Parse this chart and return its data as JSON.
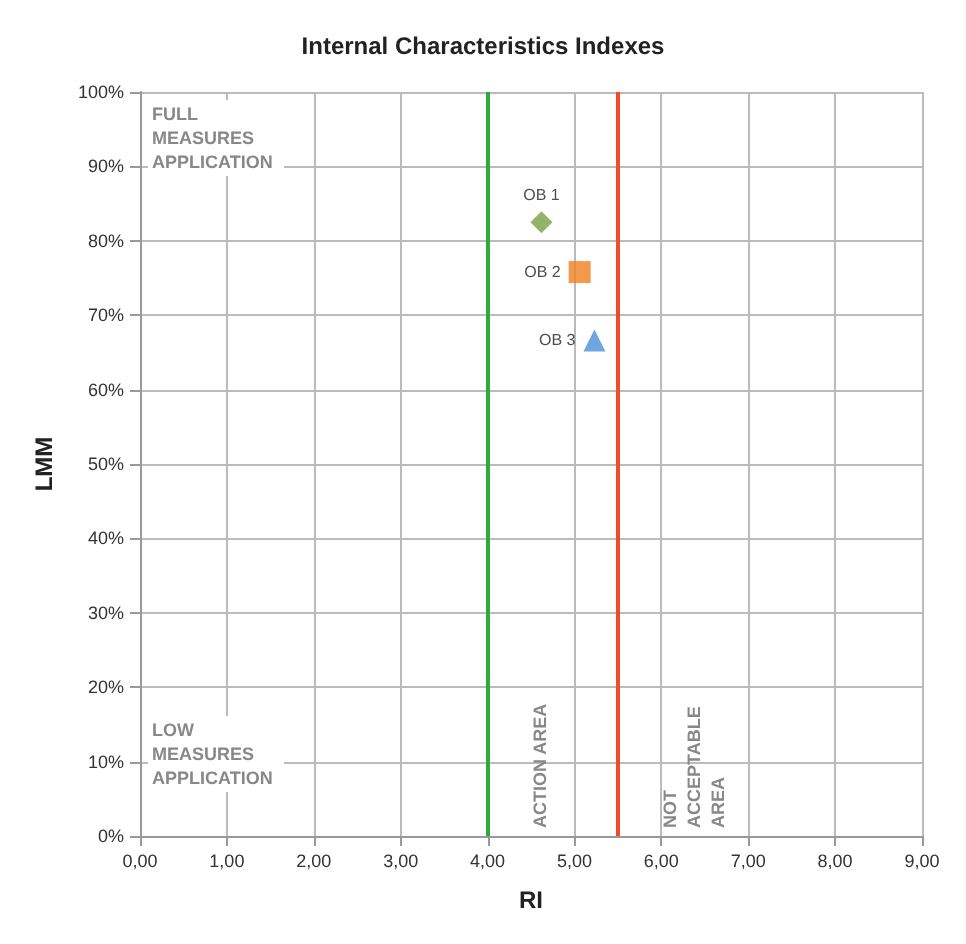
{
  "chart_data": {
    "type": "scatter",
    "title": "Internal Characteristics Indexes",
    "xlabel": "RI",
    "ylabel": "LMM",
    "xlim": [
      0,
      9
    ],
    "xticks": [
      {
        "value": 0,
        "label": "0,00"
      },
      {
        "value": 1,
        "label": "1,00"
      },
      {
        "value": 2,
        "label": "2,00"
      },
      {
        "value": 3,
        "label": "3,00"
      },
      {
        "value": 4,
        "label": "4,00"
      },
      {
        "value": 5,
        "label": "5,00"
      },
      {
        "value": 6,
        "label": "6,00"
      },
      {
        "value": 7,
        "label": "7,00"
      },
      {
        "value": 8,
        "label": "8,00"
      },
      {
        "value": 9,
        "label": "9,00"
      }
    ],
    "ylim": [
      0,
      100
    ],
    "yticks": [
      {
        "value": 0,
        "label": "0%"
      },
      {
        "value": 10,
        "label": "10%"
      },
      {
        "value": 20,
        "label": "20%"
      },
      {
        "value": 30,
        "label": "30%"
      },
      {
        "value": 40,
        "label": "40%"
      },
      {
        "value": 50,
        "label": "50%"
      },
      {
        "value": 60,
        "label": "60%"
      },
      {
        "value": 70,
        "label": "70%"
      },
      {
        "value": 80,
        "label": "80%"
      },
      {
        "value": 90,
        "label": "90%"
      },
      {
        "value": 100,
        "label": "100%"
      }
    ],
    "series": [
      {
        "name": "OB 1",
        "color": "#77a043",
        "marker": "diamond",
        "x": [
          4.62
        ],
        "values": [
          82.5
        ]
      },
      {
        "name": "OB 2",
        "color": "#f07f1e",
        "marker": "square",
        "x": [
          5.06
        ],
        "values": [
          75.8
        ]
      },
      {
        "name": "OB 3",
        "color": "#4a90d4",
        "marker": "triangle",
        "x": [
          5.23
        ],
        "values": [
          66.6
        ]
      }
    ],
    "ref_lines": [
      {
        "axis": "x",
        "value": 4,
        "label": "ACTION AREA",
        "color": "#2eaa3c"
      },
      {
        "axis": "x",
        "value": 5.5,
        "label": "NOT ACCEPTABLE AREA",
        "color": "#ee4d2a"
      }
    ],
    "annotations": [
      "FULL MEASURES APPLICATION",
      "LOW MEASURES APPLICATION"
    ],
    "grid": true,
    "legend": false
  }
}
